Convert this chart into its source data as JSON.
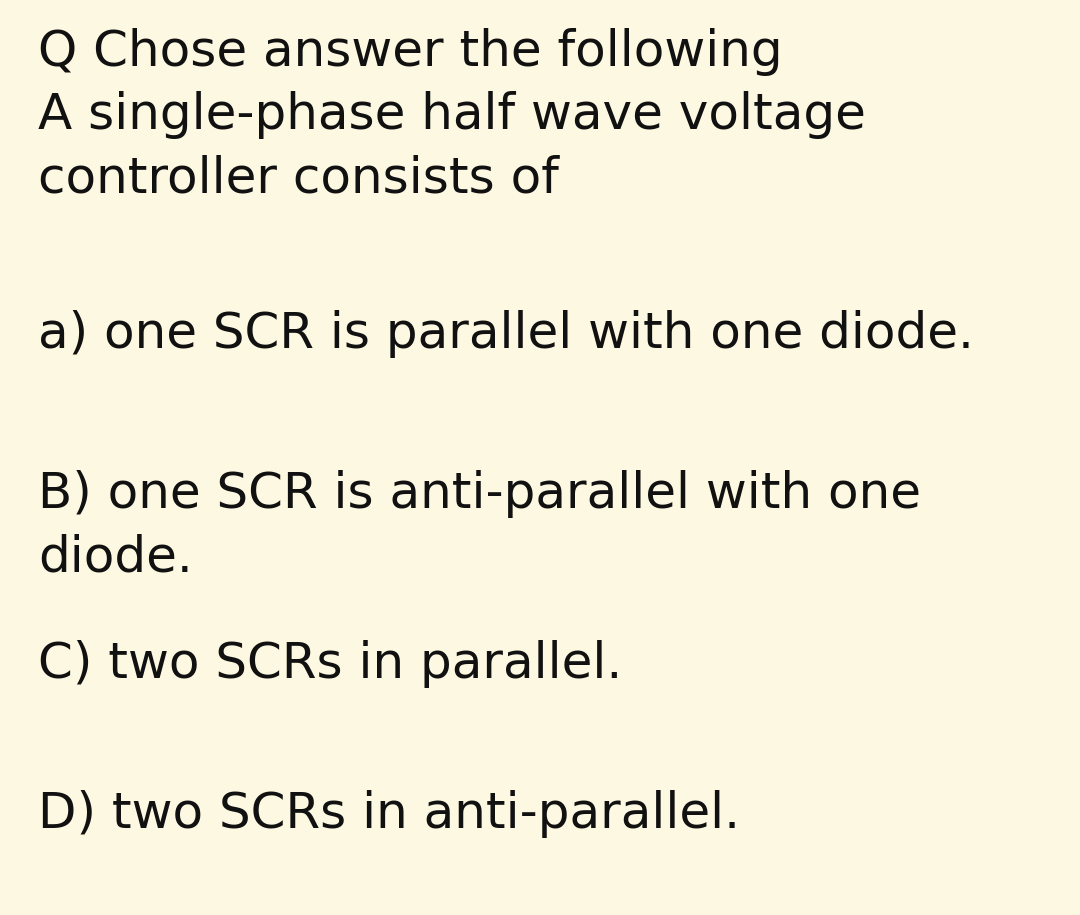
{
  "background_color": "#fdf8e1",
  "text_color": "#111111",
  "title_lines": [
    "Q Chose answer the following",
    "A single-phase half wave voltage",
    "controller consists of"
  ],
  "options": [
    "a) one SCR is parallel with one diode.",
    "B) one SCR is anti-parallel with one\ndiode.",
    "C) two SCRs in parallel.",
    "D) two SCRs in anti-parallel."
  ],
  "font_size": 36,
  "fig_width": 10.8,
  "fig_height": 9.15,
  "dpi": 100
}
